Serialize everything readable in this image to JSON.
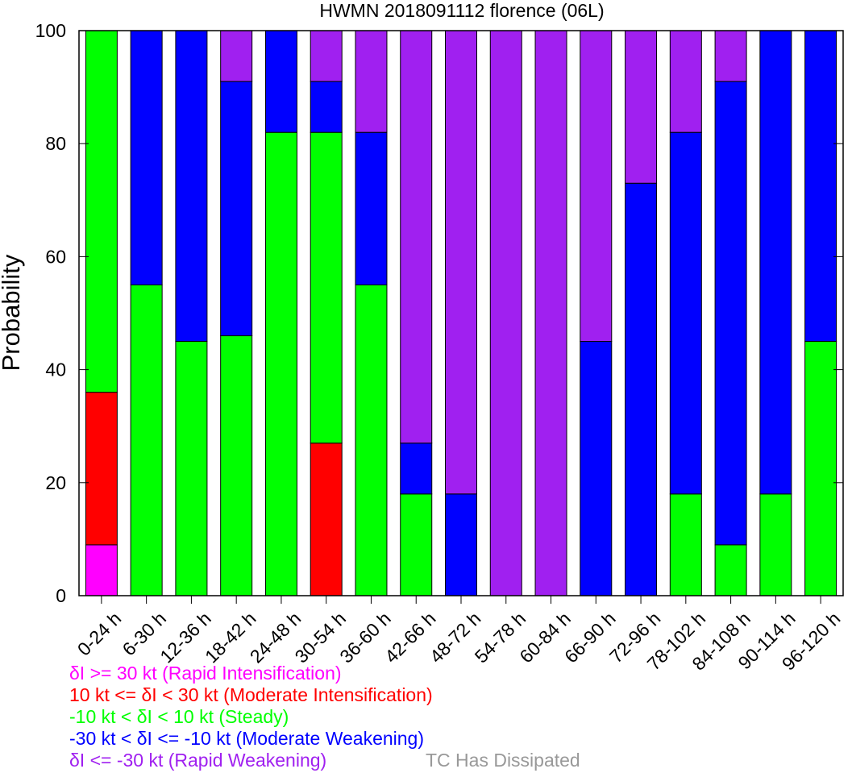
{
  "chart_data": {
    "type": "bar",
    "stacked": true,
    "title": "HWMN 2018091112 florence (06L)",
    "ylabel": "Probability",
    "xlabel": "",
    "ylim": [
      0,
      100
    ],
    "yticks": [
      0,
      20,
      40,
      60,
      80,
      100
    ],
    "categories": [
      "0-24 h",
      "6-30 h",
      "12-36 h",
      "18-42 h",
      "24-48 h",
      "30-54 h",
      "36-60 h",
      "42-66 h",
      "48-72 h",
      "54-78 h",
      "60-84 h",
      "66-90 h",
      "72-96 h",
      "78-102 h",
      "84-108 h",
      "90-114 h",
      "96-120 h"
    ],
    "series": [
      {
        "name": "δI >= 30 kt (Rapid Intensification)",
        "color": "#ff00ff",
        "values": [
          9,
          0,
          0,
          0,
          0,
          0,
          0,
          0,
          0,
          0,
          0,
          0,
          0,
          0,
          0,
          0,
          0
        ]
      },
      {
        "name": "10 kt <= δI < 30 kt (Moderate Intensification)",
        "color": "#ff0000",
        "values": [
          27,
          0,
          0,
          0,
          0,
          27,
          0,
          0,
          0,
          0,
          0,
          0,
          0,
          0,
          0,
          0,
          0
        ]
      },
      {
        "name": "-10 kt < δI < 10 kt (Steady)",
        "color": "#00ff00",
        "values": [
          64,
          55,
          45,
          46,
          82,
          55,
          55,
          18,
          0,
          0,
          0,
          0,
          0,
          18,
          9,
          18,
          45
        ]
      },
      {
        "name": "-30 kt < δI <= -10 kt (Moderate Weakening)",
        "color": "#0000ff",
        "values": [
          0,
          45,
          55,
          45,
          18,
          9,
          27,
          9,
          18,
          0,
          0,
          45,
          73,
          64,
          82,
          82,
          55
        ]
      },
      {
        "name": "δI <= -30 kt (Rapid Weakening)",
        "color": "#a020f0",
        "values": [
          0,
          0,
          0,
          9,
          0,
          9,
          18,
          73,
          82,
          100,
          100,
          55,
          27,
          18,
          9,
          0,
          0
        ]
      }
    ],
    "extra_legend": {
      "label": "TC Has Dissipated",
      "color": "#999999"
    },
    "grid": false,
    "legend_position": "bottom-left"
  }
}
